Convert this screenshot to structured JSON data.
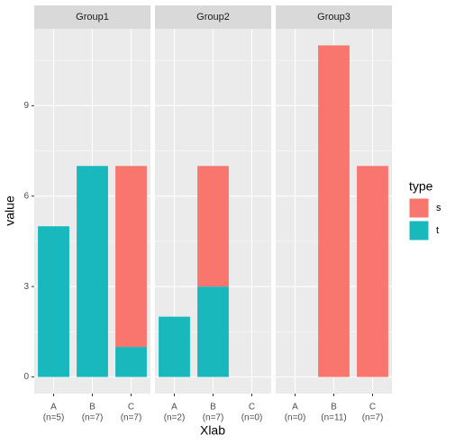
{
  "chart_data": {
    "type": "bar",
    "xlabel": "Xlab",
    "ylabel": "value",
    "legend_title": "type",
    "legend_position": "right",
    "ylim": [
      -0.55,
      11.55
    ],
    "yticks": [
      0,
      3,
      6,
      9
    ],
    "minor_yticks": [
      1.5,
      4.5,
      7.5,
      10.5
    ],
    "grid": true,
    "series_names": [
      "s",
      "t"
    ],
    "series_colors": [
      "#f8766d",
      "#19b8bd"
    ],
    "facets": [
      {
        "title": "Group1",
        "categories": [
          "A",
          "B",
          "C"
        ],
        "category_notes": [
          "(n=5)",
          "(n=7)",
          "(n=7)"
        ],
        "series": [
          {
            "name": "s",
            "values": [
              0,
              0,
              6
            ]
          },
          {
            "name": "t",
            "values": [
              5,
              7,
              1
            ]
          }
        ]
      },
      {
        "title": "Group2",
        "categories": [
          "A",
          "B",
          "C"
        ],
        "category_notes": [
          "(n=2)",
          "(n=7)",
          "(n=0)"
        ],
        "series": [
          {
            "name": "s",
            "values": [
              0,
              4,
              0
            ]
          },
          {
            "name": "t",
            "values": [
              2,
              3,
              0
            ]
          }
        ]
      },
      {
        "title": "Group3",
        "categories": [
          "A",
          "B",
          "C"
        ],
        "category_notes": [
          "(n=0)",
          "(n=11)",
          "(n=7)"
        ],
        "series": [
          {
            "name": "s",
            "values": [
              0,
              11,
              7
            ]
          },
          {
            "name": "t",
            "values": [
              0,
              0,
              0
            ]
          }
        ]
      }
    ]
  }
}
